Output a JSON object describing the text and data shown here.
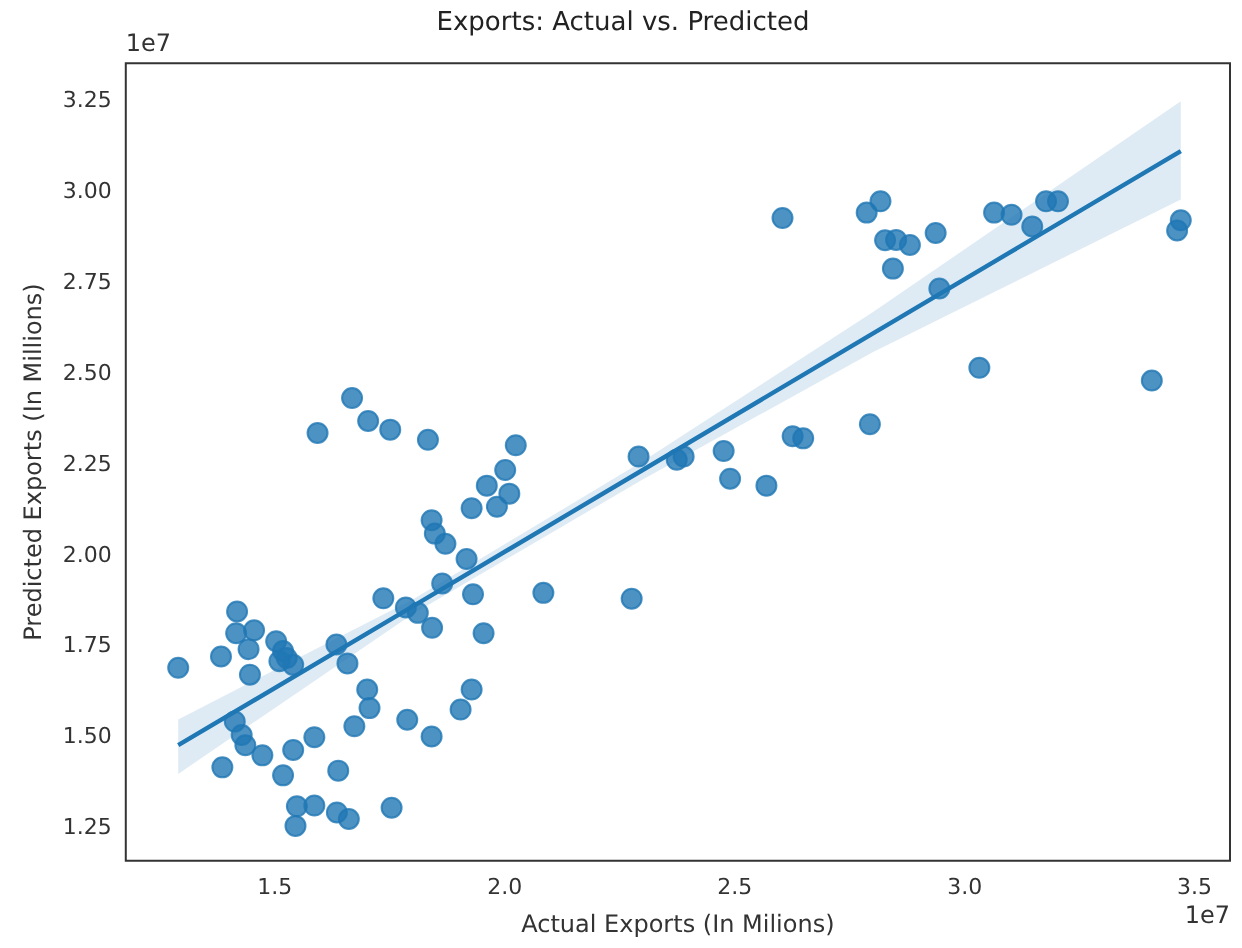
{
  "chart_data": {
    "type": "scatter",
    "title": "Exports: Actual vs. Predicted",
    "xlabel": "Actual Exports (In Milions)",
    "ylabel": "Predicted Exports (In Millions)",
    "annotations": [
      "1e7",
      "1e7"
    ],
    "xlim": [
      1.176,
      3.577
    ],
    "ylim": [
      1.161,
      3.355
    ],
    "xticks": [
      1.5,
      {
        "value": 2,
        "label": "2.0"
      },
      2.5,
      {
        "value": 3,
        "label": "3.0"
      },
      3.5
    ],
    "yticks": [
      1.25,
      {
        "value": 1.5,
        "label": "1.50"
      },
      1.75,
      {
        "value": 2,
        "label": "2.00"
      },
      2.25,
      {
        "value": 2.5,
        "label": "2.50"
      },
      2.75,
      {
        "value": 3,
        "label": "3.00"
      },
      3.25
    ],
    "grid": false,
    "legend": false,
    "marker": "circle",
    "series": [
      {
        "type": "scatter",
        "color": "#1f77b4",
        "x": [
          1.29,
          1.383,
          1.418,
          1.416,
          1.455,
          1.443,
          1.446,
          1.503,
          1.518,
          1.526,
          1.54,
          1.51,
          1.634,
          1.658,
          1.386,
          1.413,
          1.428,
          1.436,
          1.473,
          1.518,
          1.54,
          1.586,
          1.548,
          1.545,
          1.586,
          1.635,
          1.661,
          1.638,
          1.673,
          1.701,
          1.706,
          1.754,
          1.788,
          1.841,
          1.736,
          1.785,
          1.811,
          1.842,
          1.864,
          1.917,
          1.931,
          1.954,
          1.904,
          1.928,
          1.841,
          1.848,
          1.871,
          1.928,
          1.961,
          1.983,
          2.001,
          2.01,
          2.024,
          2.084,
          2.276,
          2.291,
          1.593,
          1.668,
          1.703,
          1.751,
          1.833,
          2.374,
          2.389,
          2.476,
          2.49,
          2.569,
          2.626,
          2.649,
          2.794,
          2.604,
          2.787,
          2.817,
          2.827,
          2.851,
          2.881,
          2.844,
          2.937,
          2.945,
          3.032,
          3.064,
          3.102,
          3.147,
          3.177,
          3.203,
          3.407,
          3.47,
          3.462
        ],
        "values": [
          1.692,
          1.723,
          1.847,
          1.787,
          1.795,
          1.743,
          1.673,
          1.765,
          1.738,
          1.719,
          1.7,
          1.71,
          1.756,
          1.704,
          1.418,
          1.544,
          1.507,
          1.479,
          1.451,
          1.396,
          1.466,
          1.501,
          1.311,
          1.257,
          1.313,
          1.294,
          1.276,
          1.409,
          1.531,
          1.632,
          1.581,
          1.307,
          1.549,
          1.503,
          1.883,
          1.858,
          1.843,
          1.802,
          1.924,
          1.991,
          1.894,
          1.787,
          1.577,
          1.632,
          2.098,
          2.061,
          2.033,
          2.131,
          2.193,
          2.135,
          2.236,
          2.171,
          2.304,
          1.898,
          1.882,
          2.273,
          2.338,
          2.434,
          2.371,
          2.347,
          2.319,
          2.264,
          2.273,
          2.288,
          2.212,
          2.193,
          2.329,
          2.323,
          2.362,
          2.929,
          2.944,
          2.975,
          2.868,
          2.869,
          2.855,
          2.79,
          2.888,
          2.735,
          2.517,
          2.944,
          2.938,
          2.906,
          2.975,
          2.975,
          2.482,
          2.923,
          2.895
        ]
      },
      {
        "type": "line",
        "marker": "none",
        "color": "#1f77b4",
        "x": [
          1.29,
          1.8,
          2.3,
          2.8,
          3.47
        ],
        "values": [
          1.479,
          1.861,
          2.236,
          2.611,
          3.113
        ],
        "lower": [
          1.4,
          1.84,
          2.21,
          2.56,
          2.98
        ],
        "upper": [
          1.55,
          1.88,
          2.26,
          2.67,
          3.25
        ]
      }
    ]
  }
}
